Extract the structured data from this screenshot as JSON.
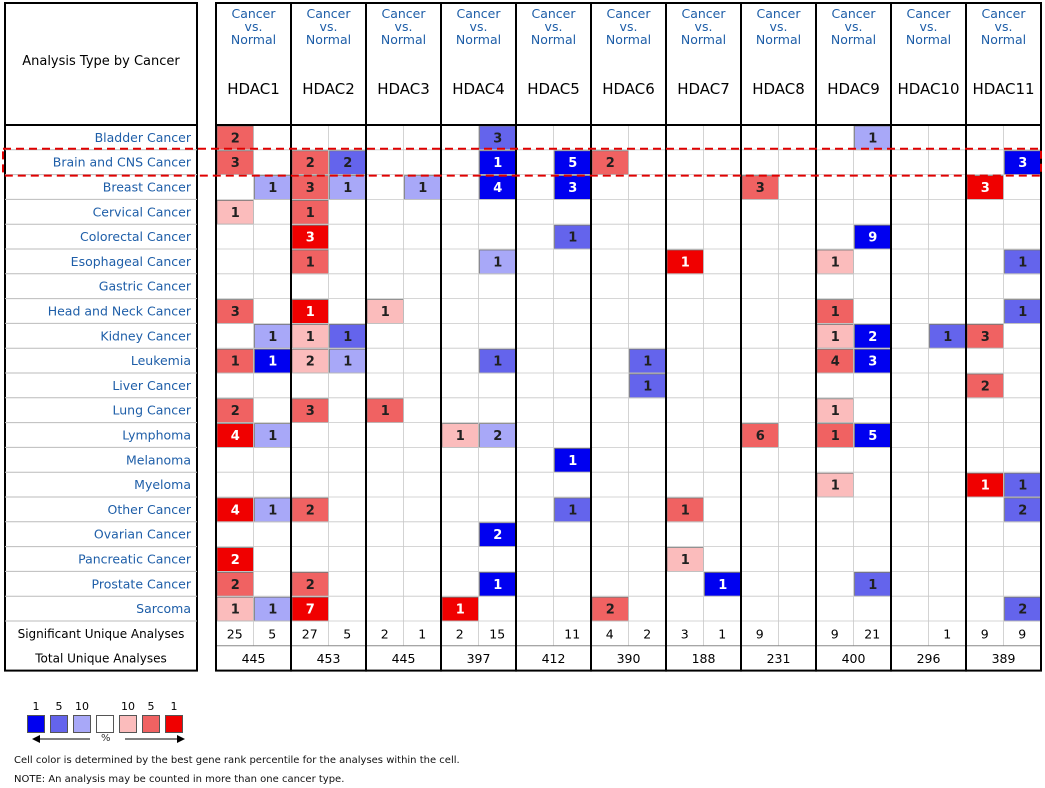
{
  "chart_data": {
    "type": "table",
    "row_header_title": "Analysis Type by Cancer",
    "column_subtitle": "Cancer\nvs.\nNormal",
    "genes": [
      "HDAC1",
      "HDAC2",
      "HDAC3",
      "HDAC4",
      "HDAC5",
      "HDAC6",
      "HDAC7",
      "HDAC8",
      "HDAC9",
      "HDAC10",
      "HDAC11"
    ],
    "cancers": [
      "Bladder Cancer",
      "Brain and CNS Cancer",
      "Breast Cancer",
      "Cervical Cancer",
      "Colorectal Cancer",
      "Esophageal Cancer",
      "Gastric Cancer",
      "Head and Neck Cancer",
      "Kidney Cancer",
      "Leukemia",
      "Liver Cancer",
      "Lung Cancer",
      "Lymphoma",
      "Melanoma",
      "Myeloma",
      "Other Cancer",
      "Ovarian Cancer",
      "Pancreatic Cancer",
      "Prostate Cancer",
      "Sarcoma"
    ],
    "cells": [
      {
        "row": 0,
        "gene": 0,
        "dir": "up",
        "count": 2,
        "shade": 2
      },
      {
        "row": 0,
        "gene": 3,
        "dir": "down",
        "count": 3,
        "shade": 2
      },
      {
        "row": 0,
        "gene": 8,
        "dir": "down",
        "count": 1,
        "shade": 1
      },
      {
        "row": 1,
        "gene": 0,
        "dir": "up",
        "count": 3,
        "shade": 2
      },
      {
        "row": 1,
        "gene": 1,
        "dir": "up",
        "count": 2,
        "shade": 2
      },
      {
        "row": 1,
        "gene": 1,
        "dir": "down",
        "count": 2,
        "shade": 2
      },
      {
        "row": 1,
        "gene": 3,
        "dir": "down",
        "count": 1,
        "shade": 3
      },
      {
        "row": 1,
        "gene": 4,
        "dir": "down",
        "count": 5,
        "shade": 3
      },
      {
        "row": 1,
        "gene": 5,
        "dir": "up",
        "count": 2,
        "shade": 2
      },
      {
        "row": 1,
        "gene": 10,
        "dir": "down",
        "count": 3,
        "shade": 3
      },
      {
        "row": 2,
        "gene": 0,
        "dir": "down",
        "count": 1,
        "shade": 1
      },
      {
        "row": 2,
        "gene": 1,
        "dir": "up",
        "count": 3,
        "shade": 2
      },
      {
        "row": 2,
        "gene": 1,
        "dir": "down",
        "count": 1,
        "shade": 1
      },
      {
        "row": 2,
        "gene": 2,
        "dir": "down",
        "count": 1,
        "shade": 1
      },
      {
        "row": 2,
        "gene": 3,
        "dir": "down",
        "count": 4,
        "shade": 3
      },
      {
        "row": 2,
        "gene": 4,
        "dir": "down",
        "count": 3,
        "shade": 3
      },
      {
        "row": 2,
        "gene": 7,
        "dir": "up",
        "count": 3,
        "shade": 2
      },
      {
        "row": 2,
        "gene": 10,
        "dir": "up",
        "count": 3,
        "shade": 3
      },
      {
        "row": 3,
        "gene": 0,
        "dir": "up",
        "count": 1,
        "shade": 1
      },
      {
        "row": 3,
        "gene": 1,
        "dir": "up",
        "count": 1,
        "shade": 2
      },
      {
        "row": 4,
        "gene": 1,
        "dir": "up",
        "count": 3,
        "shade": 3
      },
      {
        "row": 4,
        "gene": 4,
        "dir": "down",
        "count": 1,
        "shade": 2
      },
      {
        "row": 4,
        "gene": 8,
        "dir": "down",
        "count": 9,
        "shade": 3
      },
      {
        "row": 5,
        "gene": 1,
        "dir": "up",
        "count": 1,
        "shade": 2
      },
      {
        "row": 5,
        "gene": 3,
        "dir": "down",
        "count": 1,
        "shade": 1
      },
      {
        "row": 5,
        "gene": 6,
        "dir": "up",
        "count": 1,
        "shade": 3
      },
      {
        "row": 5,
        "gene": 8,
        "dir": "up",
        "count": 1,
        "shade": 1
      },
      {
        "row": 5,
        "gene": 10,
        "dir": "down",
        "count": 1,
        "shade": 2
      },
      {
        "row": 7,
        "gene": 0,
        "dir": "up",
        "count": 3,
        "shade": 2
      },
      {
        "row": 7,
        "gene": 1,
        "dir": "up",
        "count": 1,
        "shade": 3
      },
      {
        "row": 7,
        "gene": 2,
        "dir": "up",
        "count": 1,
        "shade": 1
      },
      {
        "row": 7,
        "gene": 8,
        "dir": "up",
        "count": 1,
        "shade": 2
      },
      {
        "row": 7,
        "gene": 10,
        "dir": "down",
        "count": 1,
        "shade": 2
      },
      {
        "row": 8,
        "gene": 0,
        "dir": "down",
        "count": 1,
        "shade": 1
      },
      {
        "row": 8,
        "gene": 1,
        "dir": "up",
        "count": 1,
        "shade": 1
      },
      {
        "row": 8,
        "gene": 1,
        "dir": "down",
        "count": 1,
        "shade": 2
      },
      {
        "row": 8,
        "gene": 8,
        "dir": "up",
        "count": 1,
        "shade": 1
      },
      {
        "row": 8,
        "gene": 8,
        "dir": "down",
        "count": 2,
        "shade": 3
      },
      {
        "row": 8,
        "gene": 9,
        "dir": "down",
        "count": 1,
        "shade": 2
      },
      {
        "row": 8,
        "gene": 10,
        "dir": "up",
        "count": 3,
        "shade": 2
      },
      {
        "row": 9,
        "gene": 0,
        "dir": "up",
        "count": 1,
        "shade": 2
      },
      {
        "row": 9,
        "gene": 0,
        "dir": "down",
        "count": 1,
        "shade": 3
      },
      {
        "row": 9,
        "gene": 1,
        "dir": "up",
        "count": 2,
        "shade": 1
      },
      {
        "row": 9,
        "gene": 1,
        "dir": "down",
        "count": 1,
        "shade": 1
      },
      {
        "row": 9,
        "gene": 3,
        "dir": "down",
        "count": 1,
        "shade": 2
      },
      {
        "row": 9,
        "gene": 5,
        "dir": "down",
        "count": 1,
        "shade": 2
      },
      {
        "row": 9,
        "gene": 8,
        "dir": "up",
        "count": 4,
        "shade": 2
      },
      {
        "row": 9,
        "gene": 8,
        "dir": "down",
        "count": 3,
        "shade": 3
      },
      {
        "row": 10,
        "gene": 5,
        "dir": "down",
        "count": 1,
        "shade": 2
      },
      {
        "row": 10,
        "gene": 10,
        "dir": "up",
        "count": 2,
        "shade": 2
      },
      {
        "row": 11,
        "gene": 0,
        "dir": "up",
        "count": 2,
        "shade": 2
      },
      {
        "row": 11,
        "gene": 1,
        "dir": "up",
        "count": 3,
        "shade": 2
      },
      {
        "row": 11,
        "gene": 2,
        "dir": "up",
        "count": 1,
        "shade": 2
      },
      {
        "row": 11,
        "gene": 8,
        "dir": "up",
        "count": 1,
        "shade": 1
      },
      {
        "row": 12,
        "gene": 0,
        "dir": "up",
        "count": 4,
        "shade": 3
      },
      {
        "row": 12,
        "gene": 0,
        "dir": "down",
        "count": 1,
        "shade": 1
      },
      {
        "row": 12,
        "gene": 3,
        "dir": "up",
        "count": 1,
        "shade": 1
      },
      {
        "row": 12,
        "gene": 3,
        "dir": "down",
        "count": 2,
        "shade": 1
      },
      {
        "row": 12,
        "gene": 7,
        "dir": "up",
        "count": 6,
        "shade": 2
      },
      {
        "row": 12,
        "gene": 8,
        "dir": "up",
        "count": 1,
        "shade": 2
      },
      {
        "row": 12,
        "gene": 8,
        "dir": "down",
        "count": 5,
        "shade": 3
      },
      {
        "row": 13,
        "gene": 4,
        "dir": "down",
        "count": 1,
        "shade": 3
      },
      {
        "row": 14,
        "gene": 8,
        "dir": "up",
        "count": 1,
        "shade": 1
      },
      {
        "row": 14,
        "gene": 10,
        "dir": "up",
        "count": 1,
        "shade": 3
      },
      {
        "row": 14,
        "gene": 10,
        "dir": "down",
        "count": 1,
        "shade": 2
      },
      {
        "row": 15,
        "gene": 0,
        "dir": "up",
        "count": 4,
        "shade": 3
      },
      {
        "row": 15,
        "gene": 0,
        "dir": "down",
        "count": 1,
        "shade": 1
      },
      {
        "row": 15,
        "gene": 1,
        "dir": "up",
        "count": 2,
        "shade": 2
      },
      {
        "row": 15,
        "gene": 4,
        "dir": "down",
        "count": 1,
        "shade": 2
      },
      {
        "row": 15,
        "gene": 6,
        "dir": "up",
        "count": 1,
        "shade": 2
      },
      {
        "row": 15,
        "gene": 10,
        "dir": "down",
        "count": 2,
        "shade": 2
      },
      {
        "row": 16,
        "gene": 3,
        "dir": "down",
        "count": 2,
        "shade": 3
      },
      {
        "row": 17,
        "gene": 0,
        "dir": "up",
        "count": 2,
        "shade": 3
      },
      {
        "row": 17,
        "gene": 6,
        "dir": "up",
        "count": 1,
        "shade": 1
      },
      {
        "row": 18,
        "gene": 0,
        "dir": "up",
        "count": 2,
        "shade": 2
      },
      {
        "row": 18,
        "gene": 1,
        "dir": "up",
        "count": 2,
        "shade": 2
      },
      {
        "row": 18,
        "gene": 3,
        "dir": "down",
        "count": 1,
        "shade": 3
      },
      {
        "row": 18,
        "gene": 6,
        "dir": "down",
        "count": 1,
        "shade": 3
      },
      {
        "row": 18,
        "gene": 8,
        "dir": "down",
        "count": 1,
        "shade": 2
      },
      {
        "row": 19,
        "gene": 0,
        "dir": "up",
        "count": 1,
        "shade": 1
      },
      {
        "row": 19,
        "gene": 0,
        "dir": "down",
        "count": 1,
        "shade": 1
      },
      {
        "row": 19,
        "gene": 1,
        "dir": "up",
        "count": 7,
        "shade": 3
      },
      {
        "row": 19,
        "gene": 3,
        "dir": "up",
        "count": 1,
        "shade": 3
      },
      {
        "row": 19,
        "gene": 5,
        "dir": "up",
        "count": 2,
        "shade": 2
      },
      {
        "row": 19,
        "gene": 10,
        "dir": "down",
        "count": 2,
        "shade": 2
      }
    ],
    "significant_label": "Significant Unique Analyses",
    "significant": [
      [
        "25",
        "5"
      ],
      [
        "27",
        "5"
      ],
      [
        "2",
        "1"
      ],
      [
        "2",
        "15"
      ],
      [
        "",
        "11"
      ],
      [
        "4",
        "2"
      ],
      [
        "3",
        "1"
      ],
      [
        "9",
        ""
      ],
      [
        "9",
        "21"
      ],
      [
        "",
        "1"
      ],
      [
        "9",
        "9"
      ]
    ],
    "total_label": "Total Unique Analyses",
    "total": [
      "445",
      "453",
      "445",
      "397",
      "412",
      "390",
      "188",
      "231",
      "400",
      "296",
      "389"
    ],
    "highlighted_row": 1
  },
  "colors": {
    "up": [
      "#ffffff",
      "#fbbcbc",
      "#f06262",
      "#f00000"
    ],
    "down": [
      "#ffffff",
      "#a8a8f8",
      "#6464ec",
      "#0000f0"
    ],
    "label_blue": "#1e5ea8",
    "highlight": "#e00000"
  },
  "legend": {
    "numbers": [
      "1",
      "5",
      "10",
      "",
      "10",
      "5",
      "1"
    ],
    "percent_label": "%"
  },
  "notes": {
    "line1": "Cell color is determined by the best gene rank percentile for the analyses within the cell.",
    "line2": "NOTE: An analysis may be counted in more than one cancer type."
  }
}
